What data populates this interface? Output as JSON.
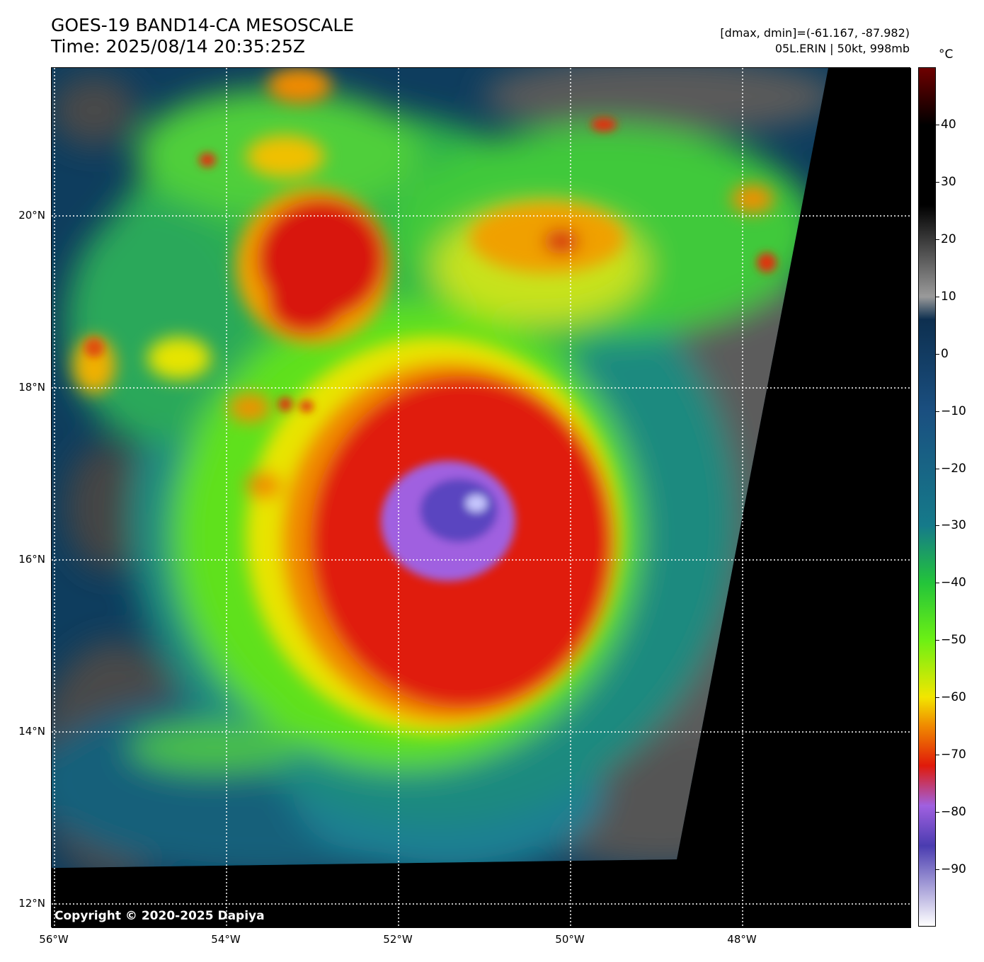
{
  "title": {
    "line1": "GOES-19 BAND14-CA MESOSCALE",
    "line2": "Time: 2025/08/14 20:35:25Z"
  },
  "meta": {
    "range": "[dmax, dmin]=(-61.167, -87.982)",
    "storm": "05L.ERIN | 50kt, 998mb"
  },
  "map": {
    "lat_labels": [
      "20°N",
      "18°N",
      "16°N",
      "14°N",
      "12°N"
    ],
    "lat_values": [
      20,
      18,
      16,
      14,
      12
    ],
    "lon_labels": [
      "56°W",
      "54°W",
      "52°W",
      "50°W",
      "48°W"
    ],
    "lon_values": [
      -56,
      -54,
      -52,
      -50,
      -48
    ],
    "gridlines": true,
    "storm_center": {
      "lat": 16.5,
      "lon": -51.3
    },
    "copyright": "Copyright © 2020-2025 Dapiya"
  },
  "colorbar": {
    "unit": "°C",
    "ticks": [
      "40",
      "30",
      "20",
      "10",
      "0",
      "−10",
      "−20",
      "−30",
      "−40",
      "−50",
      "−60",
      "−70",
      "−80",
      "−90"
    ],
    "tick_values": [
      40,
      30,
      20,
      10,
      0,
      -10,
      -20,
      -30,
      -40,
      -50,
      -60,
      -70,
      -80,
      -90
    ],
    "range": [
      -100,
      50
    ],
    "colors": {
      "warmest": "#6e0000",
      "hot": "#000000",
      "gray": "#9a9a9a",
      "navy": "#0d2f4f",
      "teal": "#157a8a",
      "green": "#23c43a",
      "lime": "#6cf014",
      "yellow": "#f2e600",
      "orange": "#f08a00",
      "red": "#e01a0a",
      "purple": "#a060e0",
      "indigo": "#4a3cb0",
      "coldest": "#ffffff"
    }
  }
}
